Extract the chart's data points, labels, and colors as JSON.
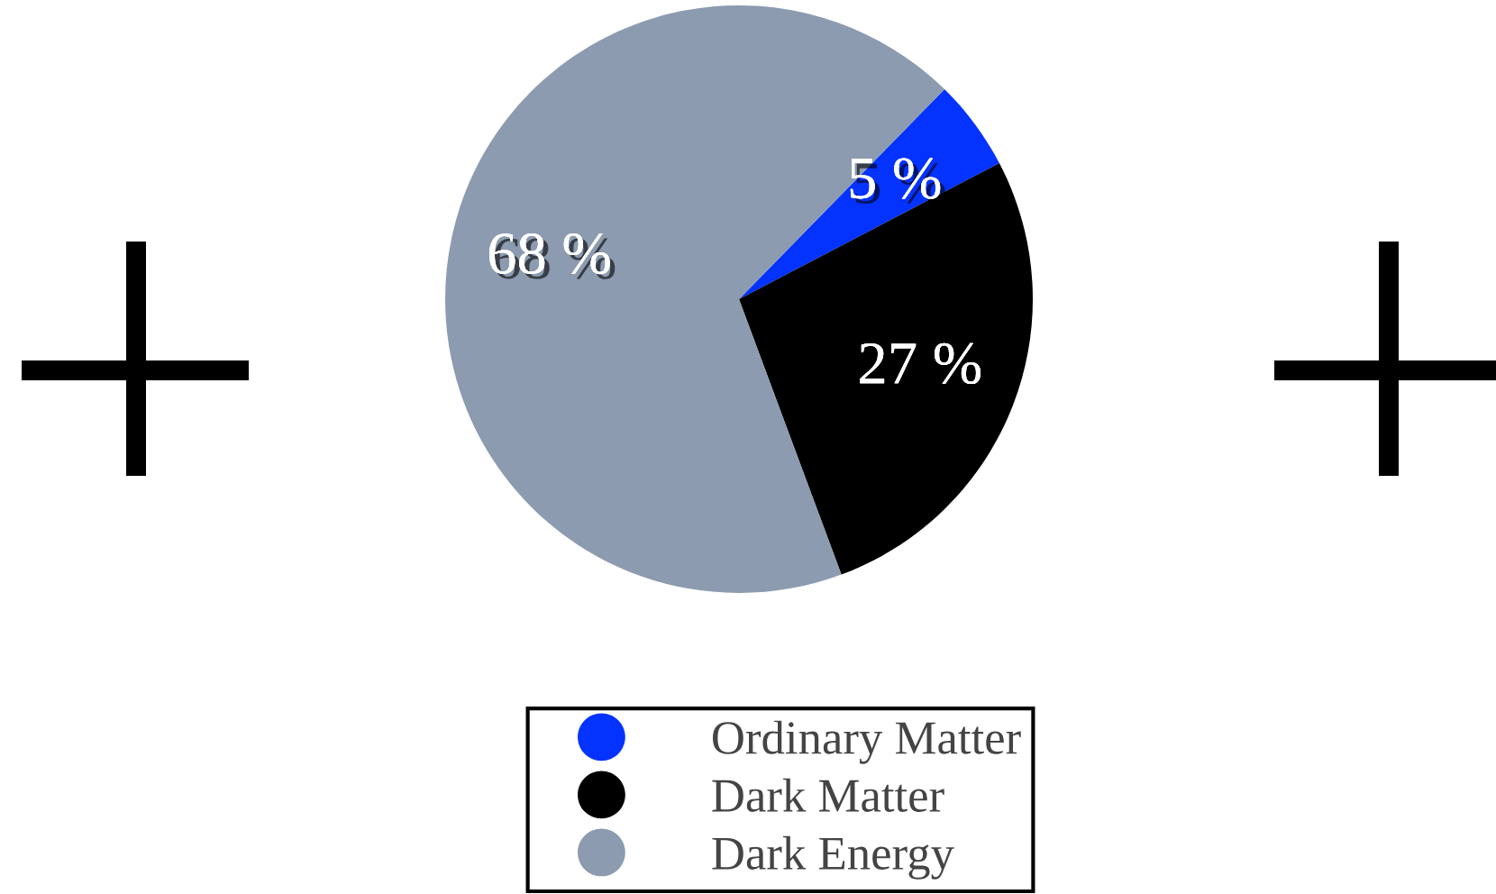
{
  "chart_data": {
    "type": "pie",
    "categories": [
      "Ordinary Matter",
      "Dark Matter",
      "Dark Energy"
    ],
    "values": [
      5,
      27,
      68
    ],
    "colors": [
      "#0433ff",
      "#000000",
      "#8c9bb0"
    ],
    "value_labels": [
      "5 %",
      "27 %",
      "68 %"
    ],
    "legend": "bottom"
  }
}
